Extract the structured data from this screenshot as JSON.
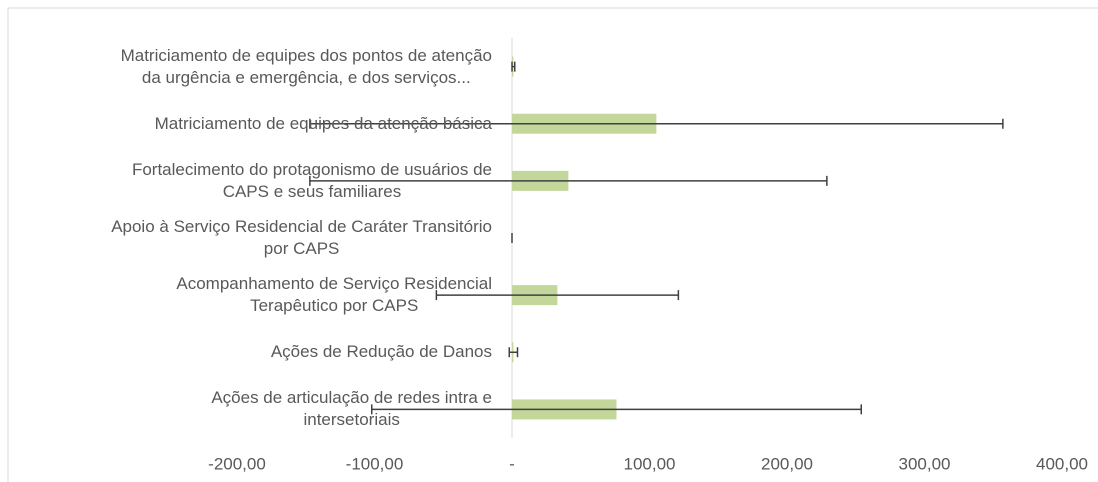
{
  "chart_data": {
    "type": "bar",
    "orientation": "horizontal",
    "categories": [
      "Matriciamento de equipes dos pontos de atenção\nda urgência e  emergência, e dos serviços...",
      "Matriciamento de equipes da atenção básica",
      "Fortalecimento do protagonismo de usuários de\nCAPS e seus familiares",
      "Apoio à Serviço Residencial de Caráter Transitório\npor CAPS",
      "Acompanhamento de Serviço Residencial\nTerapêutico por CAPS",
      "Ações de Redução de Danos",
      "Ações de articulação de redes intra e\nintersetoriais"
    ],
    "values": [
      1,
      105,
      41,
      0,
      33,
      1,
      76
    ],
    "errors": [
      1,
      252,
      188,
      0,
      88,
      3,
      178
    ],
    "color": "#c4d79b",
    "error_color": "#404040",
    "xlim": [
      -200,
      400
    ],
    "xticks": [
      {
        "value": -200,
        "label": "-200,00"
      },
      {
        "value": -100,
        "label": "-100,00"
      },
      {
        "value": 0,
        "label": "-"
      },
      {
        "value": 100,
        "label": "100,00"
      },
      {
        "value": 200,
        "label": "200,00"
      },
      {
        "value": 300,
        "label": "300,00"
      },
      {
        "value": 400,
        "label": "400,00"
      }
    ],
    "grid": false
  }
}
